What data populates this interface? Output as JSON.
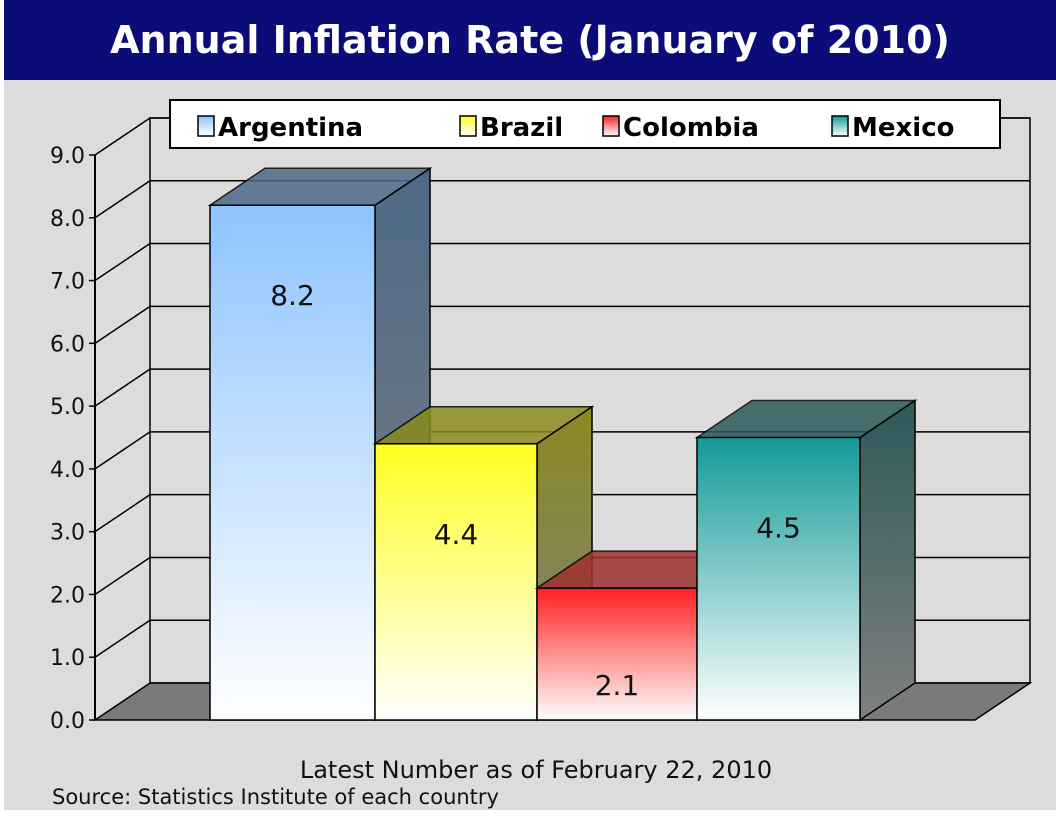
{
  "chart_data": {
    "type": "bar",
    "title": "Annual Inflation Rate (January of 2010)",
    "categories": [
      "Argentina",
      "Brazil",
      "Colombia",
      "Mexico"
    ],
    "values": [
      8.2,
      4.4,
      2.1,
      4.5
    ],
    "data_labels": [
      "8.2",
      "4.4",
      "2.1",
      "4.5"
    ],
    "colors": [
      "#8ec4ff",
      "#ffff20",
      "#ff2020",
      "#129a98"
    ],
    "side_colors": [
      "#4e6a88",
      "#8a8a20",
      "#a03030",
      "#2d5a5a"
    ],
    "legend": [
      "Argentina",
      "Brazil",
      "Colombia",
      "Mexico"
    ],
    "legend_position": "top",
    "xlabel": "Latest Number as of February 22, 2010",
    "ylabel": "",
    "ylim": [
      0,
      9
    ],
    "yticks": [
      "0.0",
      "1.0",
      "2.0",
      "3.0",
      "4.0",
      "5.0",
      "6.0",
      "7.0",
      "8.0",
      "9.0"
    ],
    "grid": true,
    "source": "Source: Statistics Institute of each country"
  }
}
